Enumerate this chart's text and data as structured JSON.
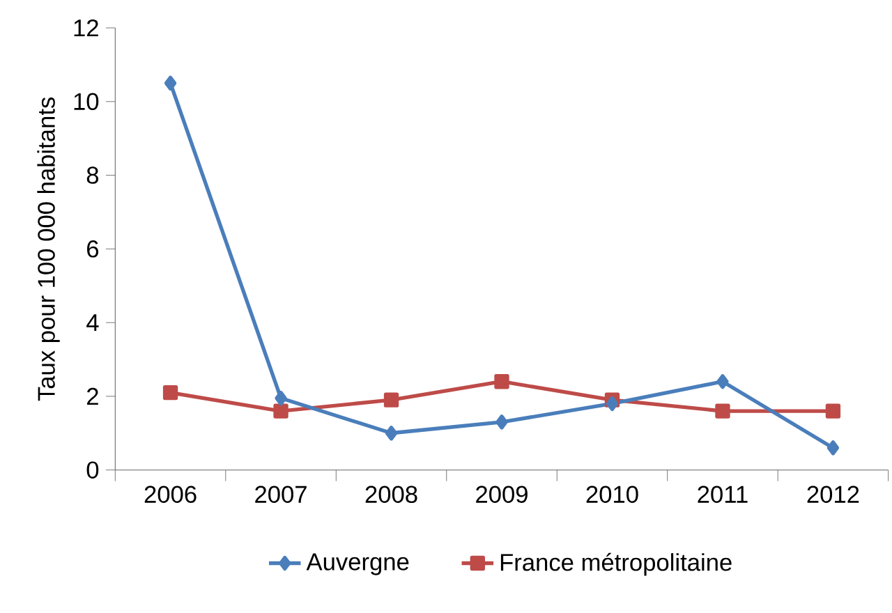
{
  "chart_data": {
    "type": "line",
    "ylabel": "Taux pour 100 000 habitants",
    "categories": [
      "2006",
      "2007",
      "2008",
      "2009",
      "2010",
      "2011",
      "2012"
    ],
    "series": [
      {
        "name": "Auvergne",
        "color": "#4a7ebb",
        "marker": "diamond",
        "values": [
          10.5,
          1.95,
          1.0,
          1.3,
          1.8,
          2.4,
          0.6
        ]
      },
      {
        "name": "France métropolitaine",
        "color": "#be4b48",
        "marker": "square",
        "values": [
          2.1,
          1.6,
          1.9,
          2.4,
          1.9,
          1.6,
          1.6
        ]
      }
    ],
    "ylim": [
      0,
      12
    ],
    "yticks": [
      0,
      2,
      4,
      6,
      8,
      10,
      12
    ],
    "grid": false,
    "legend": "bottom"
  }
}
